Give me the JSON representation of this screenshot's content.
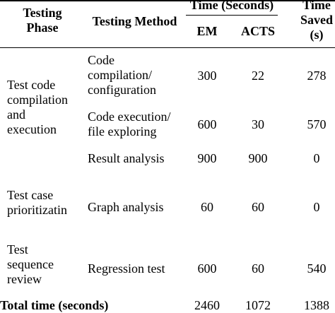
{
  "table": {
    "header": {
      "phase": "Testing\nPhase",
      "method": "Testing Method",
      "time_group": "Time (Seconds)",
      "em": "EM",
      "acts": "ACTS",
      "saved": "Time\nSaved\n(s)"
    },
    "rows": [
      {
        "phase": "Test code\ncompilation\nand\nexecution",
        "method": "Code\ncompilation/\nconfiguration",
        "em": "300",
        "acts": "22",
        "saved": "278"
      },
      {
        "phase": "",
        "method": "Code execution/\nfile exploring",
        "em": "600",
        "acts": "30",
        "saved": "570"
      },
      {
        "phase": "",
        "method": "Result analysis",
        "em": "900",
        "acts": "900",
        "saved": "0"
      },
      {
        "phase": "Test case\nprioritizatin",
        "method": "Graph analysis",
        "em": "60",
        "acts": "60",
        "saved": "0"
      },
      {
        "phase": "Test\nsequence\nreview",
        "method": "Regression test",
        "em": "600",
        "acts": "60",
        "saved": "540"
      }
    ],
    "total": {
      "label": "Total time (seconds)",
      "em": "2460",
      "acts": "1072",
      "saved": "1388"
    }
  }
}
